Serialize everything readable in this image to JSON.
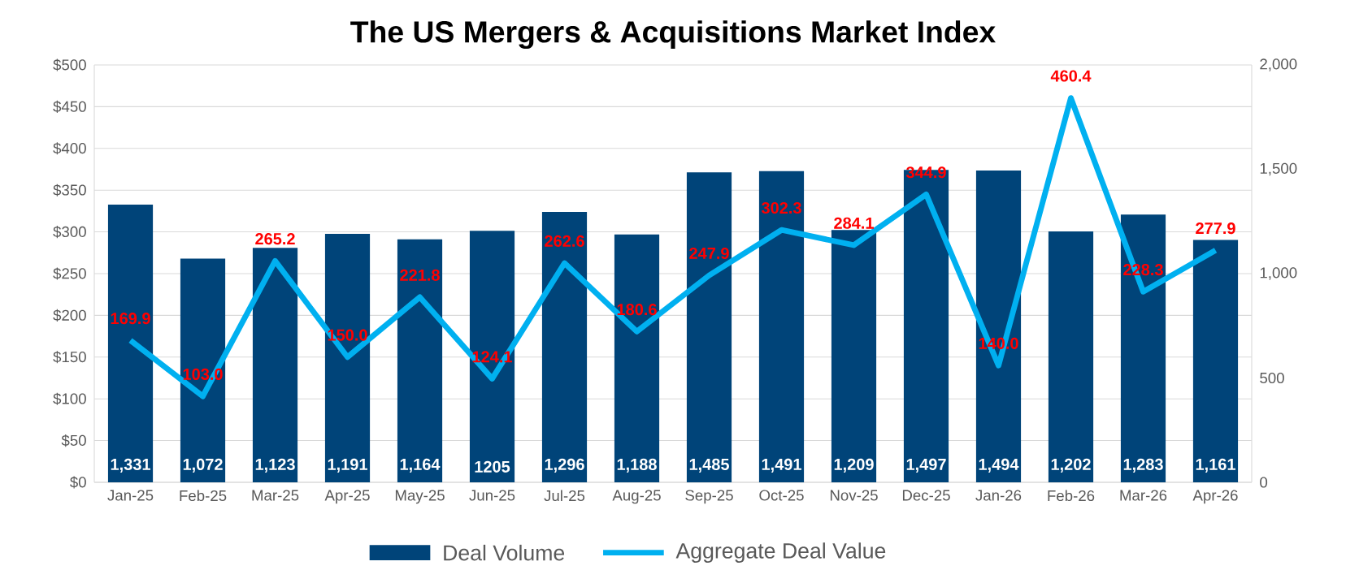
{
  "chart_data": {
    "type": "bar",
    "title": "The US Mergers & Acquisitions Market Index",
    "categories": [
      "Jan-25",
      "Feb-25",
      "Mar-25",
      "Apr-25",
      "May-25",
      "Jun-25",
      "Jul-25",
      "Aug-25",
      "Sep-25",
      "Oct-25",
      "Nov-25",
      "Dec-25",
      "Jan-26",
      "Feb-26",
      "Mar-26",
      "Apr-26"
    ],
    "series": [
      {
        "name": "Deal Volume",
        "axis": "y2",
        "color": "#004479",
        "values": [
          1331,
          1072,
          1123,
          1191,
          1164,
          1205,
          1296,
          1188,
          1485,
          1491,
          1209,
          1497,
          1494,
          1202,
          1283,
          1161
        ],
        "value_labels": [
          "1,331",
          "1,072",
          "1,123",
          "1,191",
          "1,164",
          "1205",
          "1,296",
          "1,188",
          "1,485",
          "1,491",
          "1,209",
          "1,497",
          "1,494",
          "1,202",
          "1,283",
          "1,161"
        ]
      },
      {
        "name": "Aggregate Deal Value",
        "type": "line",
        "axis": "y",
        "color": "#00b0f0",
        "values": [
          169.9,
          103.0,
          265.2,
          150.0,
          221.8,
          124.1,
          262.6,
          180.6,
          247.9,
          302.3,
          284.1,
          344.9,
          140.0,
          460.4,
          228.3,
          277.9
        ],
        "value_labels": [
          "169.9",
          "103.0",
          "265.2",
          "150.0",
          "221.8",
          "124.1",
          "262.6",
          "180.6",
          "247.9",
          "302.3",
          "284.1",
          "344.9",
          "140.0",
          "460.4",
          "228.3",
          "277.9"
        ]
      }
    ],
    "ylim": [
      0,
      500
    ],
    "yticks": [
      {
        "value": 0,
        "label": "$0"
      },
      {
        "value": 50,
        "label": "$50"
      },
      {
        "value": 100,
        "label": "$100"
      },
      {
        "value": 150,
        "label": "$150"
      },
      {
        "value": 200,
        "label": "$200"
      },
      {
        "value": 250,
        "label": "$250"
      },
      {
        "value": 300,
        "label": "$300"
      },
      {
        "value": 350,
        "label": "$350"
      },
      {
        "value": 400,
        "label": "$400"
      },
      {
        "value": 450,
        "label": "$450"
      },
      {
        "value": 500,
        "label": "$500"
      }
    ],
    "y2lim": [
      0,
      2000
    ],
    "y2ticks": [
      0,
      500,
      {
        "value": 1000,
        "label": "1,000"
      },
      {
        "value": 1500,
        "label": "1,500"
      },
      {
        "value": 2000,
        "label": "2,000"
      }
    ],
    "grid": "y",
    "legend": "bottom",
    "marker": "none"
  }
}
